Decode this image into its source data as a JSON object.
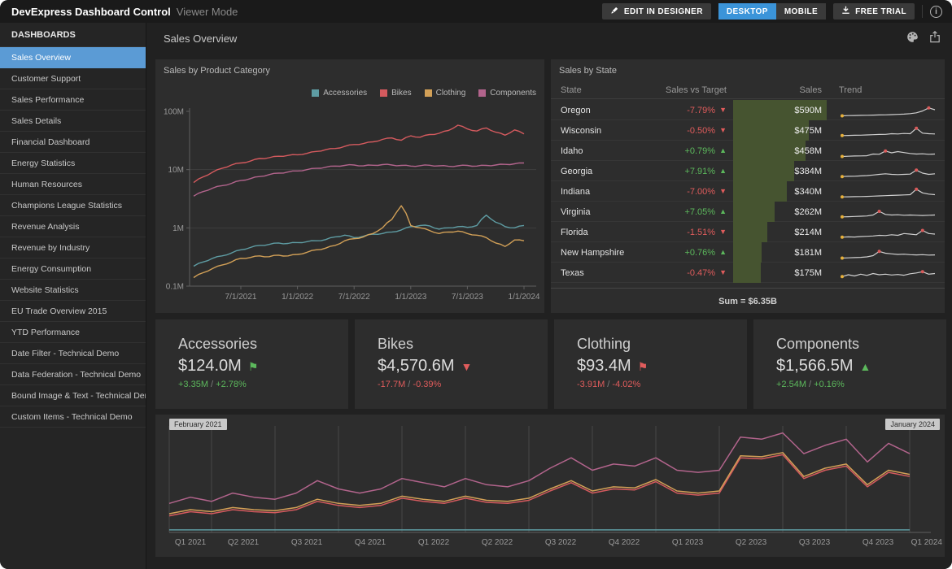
{
  "topbar": {
    "title": "DevExpress Dashboard Control",
    "mode": "Viewer Mode",
    "edit_button": "EDIT IN DESIGNER",
    "desktop_button": "DESKTOP",
    "mobile_button": "MOBILE",
    "free_trial_button": "FREE TRIAL"
  },
  "sidebar": {
    "header": "DASHBOARDS",
    "items": [
      {
        "label": "Sales Overview",
        "selected": true
      },
      {
        "label": "Customer Support",
        "selected": false
      },
      {
        "label": "Sales Performance",
        "selected": false
      },
      {
        "label": "Sales Details",
        "selected": false
      },
      {
        "label": "Financial Dashboard",
        "selected": false
      },
      {
        "label": "Energy Statistics",
        "selected": false
      },
      {
        "label": "Human Resources",
        "selected": false
      },
      {
        "label": "Champions League Statistics",
        "selected": false
      },
      {
        "label": "Revenue Analysis",
        "selected": false
      },
      {
        "label": "Revenue by Industry",
        "selected": false
      },
      {
        "label": "Energy Consumption",
        "selected": false
      },
      {
        "label": "Website Statistics",
        "selected": false
      },
      {
        "label": "EU Trade Overview 2015",
        "selected": false
      },
      {
        "label": "YTD Performance",
        "selected": false
      },
      {
        "label": "Date Filter - Technical Demo",
        "selected": false
      },
      {
        "label": "Data Federation - Technical Demo",
        "selected": false
      },
      {
        "label": "Bound Image & Text - Technical Demo",
        "selected": false
      },
      {
        "label": "Custom Items - Technical Demo",
        "selected": false
      }
    ]
  },
  "main": {
    "title": "Sales Overview"
  },
  "colors": {
    "accent_blue": "#5b9bd5",
    "desktop_blue": "#3b94d9",
    "positive": "#5cb85c",
    "negative": "#e05c5c",
    "bar_green": "#465430",
    "sparkline": "#cfcfcf",
    "spark_start_dot": "#e7b13c",
    "spark_peak_dot": "#d95b5b",
    "grid": "#3e3e3e",
    "axis": "#5f5f5f",
    "tick_text": "#999999"
  },
  "category_chart": {
    "type": "line",
    "title": "Sales by Product Category",
    "y_scale": "log",
    "y_ticks": [
      {
        "label": "100M",
        "value": 100
      },
      {
        "label": "10M",
        "value": 10
      },
      {
        "label": "1M",
        "value": 1
      },
      {
        "label": "0.1M",
        "value": 0.1
      }
    ],
    "x_ticks": [
      {
        "label": "7/1/2021",
        "month": 5
      },
      {
        "label": "1/1/2022",
        "month": 11
      },
      {
        "label": "7/1/2022",
        "month": 17
      },
      {
        "label": "1/1/2023",
        "month": 23
      },
      {
        "label": "7/1/2023",
        "month": 29
      },
      {
        "label": "1/1/2024",
        "month": 35
      }
    ],
    "start_month": "2021-02",
    "series": [
      {
        "name": "Accessories",
        "color": "#5e9ca3",
        "values": [
          0.22,
          0.26,
          0.3,
          0.33,
          0.37,
          0.42,
          0.46,
          0.5,
          0.52,
          0.55,
          0.54,
          0.56,
          0.58,
          0.6,
          0.63,
          0.7,
          0.75,
          0.68,
          0.72,
          0.78,
          0.8,
          0.85,
          0.92,
          1.05,
          1.1,
          1.08,
          0.95,
          1.0,
          1.05,
          1.02,
          1.1,
          1.65,
          1.25,
          1.05,
          1.0,
          1.1
        ]
      },
      {
        "name": "Bikes",
        "color": "#d45a5e",
        "values": [
          6.0,
          7.5,
          9.0,
          10.5,
          12,
          13,
          14,
          15.5,
          16,
          17,
          17.5,
          18,
          19,
          20.5,
          22,
          23,
          25,
          27,
          28,
          30,
          33,
          35,
          32,
          38,
          36,
          40,
          42,
          47,
          58,
          50,
          46,
          52,
          44,
          39,
          48,
          41
        ]
      },
      {
        "name": "Clothing",
        "color": "#d2a057",
        "values": [
          0.14,
          0.17,
          0.2,
          0.23,
          0.26,
          0.3,
          0.31,
          0.33,
          0.32,
          0.34,
          0.33,
          0.35,
          0.38,
          0.42,
          0.45,
          0.5,
          0.6,
          0.65,
          0.7,
          0.8,
          1.0,
          1.4,
          2.4,
          1.1,
          1.0,
          0.9,
          0.8,
          0.85,
          0.88,
          0.8,
          0.75,
          0.68,
          0.55,
          0.48,
          0.62,
          0.6
        ]
      },
      {
        "name": "Components",
        "color": "#b2648c",
        "values": [
          3.5,
          4.2,
          4.8,
          5.3,
          5.8,
          6.5,
          7.0,
          7.6,
          8.2,
          8.7,
          9.1,
          9.5,
          10.0,
          10.5,
          11.0,
          11.5,
          11.8,
          12.0,
          11.6,
          11.9,
          12.2,
          12.0,
          11.8,
          11.5,
          11.7,
          11.9,
          11.6,
          11.4,
          11.6,
          11.8,
          11.5,
          11.8,
          12.0,
          12.3,
          12.6,
          13.0
        ]
      }
    ]
  },
  "sales_by_state": {
    "title": "Sales by State",
    "columns": [
      "State",
      "Sales vs Target",
      "Sales",
      "Trend"
    ],
    "sum_label": "Sum = $6.35B",
    "max_sales": 590,
    "rows": [
      {
        "state": "Oregon",
        "target": "-7.79%",
        "dir": "down",
        "sales": "$590M",
        "sales_value": 590,
        "trend": [
          0.1,
          0.12,
          0.13,
          0.14,
          0.15,
          0.16,
          0.17,
          0.18,
          0.2,
          0.22,
          0.24,
          0.28,
          0.35,
          0.5,
          0.75,
          0.6
        ]
      },
      {
        "state": "Wisconsin",
        "target": "-0.50%",
        "dir": "down",
        "sales": "$475M",
        "sales_value": 475,
        "trend": [
          0.15,
          0.16,
          0.17,
          0.18,
          0.2,
          0.22,
          0.24,
          0.25,
          0.3,
          0.28,
          0.32,
          0.3,
          0.75,
          0.35,
          0.3,
          0.28
        ]
      },
      {
        "state": "Idaho",
        "target": "+0.79%",
        "dir": "up",
        "sales": "$458M",
        "sales_value": 458,
        "trend": [
          0.1,
          0.12,
          0.14,
          0.15,
          0.16,
          0.3,
          0.28,
          0.55,
          0.4,
          0.5,
          0.42,
          0.35,
          0.3,
          0.32,
          0.28,
          0.3
        ]
      },
      {
        "state": "Georgia",
        "target": "+7.91%",
        "dir": "up",
        "sales": "$384M",
        "sales_value": 384,
        "trend": [
          0.12,
          0.14,
          0.15,
          0.17,
          0.2,
          0.25,
          0.3,
          0.35,
          0.3,
          0.28,
          0.3,
          0.32,
          0.65,
          0.4,
          0.3,
          0.35
        ]
      },
      {
        "state": "Indiana",
        "target": "-7.00%",
        "dir": "down",
        "sales": "$340M",
        "sales_value": 340,
        "trend": [
          0.12,
          0.13,
          0.14,
          0.15,
          0.16,
          0.18,
          0.2,
          0.22,
          0.24,
          0.26,
          0.28,
          0.3,
          0.75,
          0.45,
          0.35,
          0.3
        ]
      },
      {
        "state": "Virginia",
        "target": "+7.05%",
        "dir": "up",
        "sales": "$262M",
        "sales_value": 262,
        "trend": [
          0.15,
          0.16,
          0.18,
          0.2,
          0.22,
          0.3,
          0.6,
          0.35,
          0.3,
          0.32,
          0.28,
          0.3,
          0.28,
          0.26,
          0.28,
          0.3
        ]
      },
      {
        "state": "Florida",
        "target": "-1.51%",
        "dir": "down",
        "sales": "$214M",
        "sales_value": 214,
        "trend": [
          0.15,
          0.17,
          0.16,
          0.2,
          0.22,
          0.25,
          0.3,
          0.28,
          0.35,
          0.3,
          0.45,
          0.4,
          0.35,
          0.7,
          0.45,
          0.4
        ]
      },
      {
        "state": "New Hampshire",
        "target": "+0.76%",
        "dir": "up",
        "sales": "$181M",
        "sales_value": 181,
        "trend": [
          0.1,
          0.12,
          0.14,
          0.16,
          0.2,
          0.3,
          0.65,
          0.5,
          0.45,
          0.4,
          0.42,
          0.38,
          0.36,
          0.38,
          0.35,
          0.36
        ]
      },
      {
        "state": "Texas",
        "target": "-0.47%",
        "dir": "down",
        "sales": "$175M",
        "sales_value": 175,
        "trend": [
          0.25,
          0.4,
          0.3,
          0.45,
          0.35,
          0.5,
          0.4,
          0.45,
          0.38,
          0.42,
          0.36,
          0.48,
          0.55,
          0.65,
          0.45,
          0.5
        ]
      }
    ]
  },
  "kpis": [
    {
      "title": "Accessories",
      "value": "$124.0M",
      "indicator": "flag",
      "trend": "up",
      "delta": [
        "+3.35M",
        "+2.78%"
      ]
    },
    {
      "title": "Bikes",
      "value": "$4,570.6M",
      "indicator": "triangle",
      "trend": "down",
      "delta": [
        "-17.7M",
        "-0.39%"
      ]
    },
    {
      "title": "Clothing",
      "value": "$93.4M",
      "indicator": "flag",
      "trend": "down",
      "delta": [
        "-3.91M",
        "-4.02%"
      ]
    },
    {
      "title": "Components",
      "value": "$1,566.5M",
      "indicator": "triangle",
      "trend": "up",
      "delta": [
        "+2.54M",
        "+0.16%"
      ]
    }
  ],
  "range_chart": {
    "type": "line",
    "start_label": "February 2021",
    "end_label": "January 2024",
    "x_labels": [
      "Q1 2021",
      "Q2 2021",
      "Q3 2021",
      "Q4 2021",
      "Q1 2022",
      "Q2 2022",
      "Q3 2022",
      "Q4 2022",
      "Q1 2023",
      "Q2 2023",
      "Q3 2023",
      "Q4 2023",
      "Q1 2024"
    ],
    "label_months": [
      1,
      3.5,
      6.5,
      9.5,
      12.5,
      15.5,
      18.5,
      21.5,
      24.5,
      27.5,
      30.5,
      33.5,
      35.8
    ],
    "grid_months": [
      2,
      5,
      8,
      11,
      14,
      17,
      20,
      23,
      26,
      29,
      32,
      35
    ],
    "series": [
      {
        "name": "Components",
        "color": "#b2648c",
        "values": [
          14,
          17,
          15,
          19,
          17,
          16,
          19,
          25,
          21,
          19,
          21,
          26,
          24,
          22,
          26,
          23,
          22,
          25,
          31,
          36,
          30,
          33,
          32,
          36,
          30,
          29,
          30,
          46,
          45,
          48,
          38,
          42,
          45,
          34,
          43,
          38
        ]
      },
      {
        "name": "Bikes",
        "color": "#d45a5e",
        "values": [
          8,
          10,
          9,
          11,
          10,
          9.5,
          11,
          15,
          13,
          12,
          13,
          16.5,
          15,
          14,
          16.5,
          14.5,
          14,
          15.5,
          20,
          24,
          19,
          21,
          20.5,
          24.5,
          19,
          18,
          19,
          36,
          35.5,
          37.5,
          26,
          30,
          32,
          22,
          29,
          27
        ]
      },
      {
        "name": "Clothing",
        "color": "#d2a057",
        "values": [
          9,
          11,
          10,
          12,
          11,
          10.5,
          12,
          16,
          14,
          13,
          14,
          17.5,
          16,
          15,
          17.5,
          15.5,
          15,
          16.5,
          21,
          25,
          20,
          22,
          21.5,
          25.5,
          20,
          19,
          20,
          37,
          36.5,
          38.5,
          27,
          31,
          33,
          23,
          30,
          28
        ]
      },
      {
        "name": "Accessories",
        "color": "#5e9ca3",
        "values": [
          1.2,
          1.2,
          1.2,
          1.2,
          1.2,
          1.2,
          1.2,
          1.2,
          1.2,
          1.2,
          1.2,
          1.2,
          1.2,
          1.2,
          1.2,
          1.2,
          1.2,
          1.2,
          1.2,
          1.2,
          1.2,
          1.2,
          1.2,
          1.2,
          1.2,
          1.2,
          1.2,
          1.2,
          1.2,
          1.2,
          1.2,
          1.2,
          1.2,
          1.2,
          1.2,
          1.2
        ]
      }
    ]
  }
}
